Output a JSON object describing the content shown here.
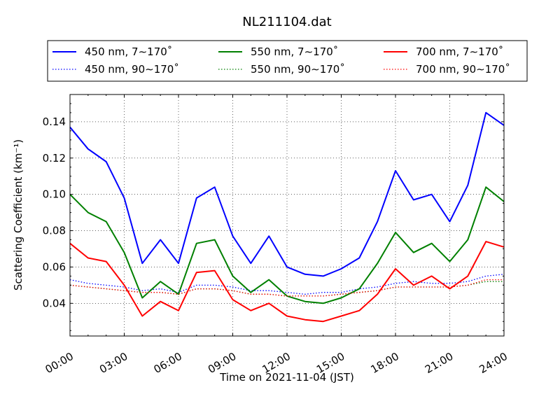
{
  "chart_data": {
    "type": "line",
    "title": "NL211104.dat",
    "xlabel": "Time on 2021-11-04 (JST)",
    "ylabel": "Scattering Coefficient (km⁻¹)",
    "x_unit": "time of day (JST)",
    "xlim": [
      "00:00",
      "24:00"
    ],
    "ylim": [
      0.022,
      0.155
    ],
    "x_tick_labels": [
      "00:00",
      "03:00",
      "06:00",
      "09:00",
      "12:00",
      "15:00",
      "18:00",
      "21:00",
      "24:00"
    ],
    "y_tick_values": [
      0.04,
      0.06,
      0.08,
      0.1,
      0.12,
      0.14
    ],
    "y_tick_labels": [
      "0.04",
      "0.06",
      "0.08",
      "0.10",
      "0.12",
      "0.14"
    ],
    "grid": true,
    "legend_position": "top",
    "x": [
      "00:00",
      "01:00",
      "02:00",
      "03:00",
      "04:00",
      "05:00",
      "06:00",
      "07:00",
      "08:00",
      "09:00",
      "10:00",
      "11:00",
      "12:00",
      "13:00",
      "14:00",
      "15:00",
      "16:00",
      "17:00",
      "18:00",
      "19:00",
      "20:00",
      "21:00",
      "22:00",
      "23:00",
      "24:00"
    ],
    "series": [
      {
        "name": "450 nm, 7∼170˚",
        "color": "#0000ff",
        "style": "solid",
        "values": [
          0.137,
          0.125,
          0.118,
          0.098,
          0.062,
          0.075,
          0.062,
          0.098,
          0.104,
          0.077,
          0.062,
          0.077,
          0.06,
          0.056,
          0.055,
          0.059,
          0.065,
          0.085,
          0.113,
          0.097,
          0.1,
          0.085,
          0.105,
          0.145,
          0.138
        ]
      },
      {
        "name": "450 nm, 90∼170˚",
        "color": "#0000ff",
        "style": "dotted",
        "values": [
          0.053,
          0.051,
          0.05,
          0.049,
          0.047,
          0.048,
          0.046,
          0.05,
          0.05,
          0.049,
          0.047,
          0.047,
          0.046,
          0.045,
          0.046,
          0.046,
          0.048,
          0.049,
          0.051,
          0.052,
          0.051,
          0.051,
          0.052,
          0.055,
          0.056
        ]
      },
      {
        "name": "550 nm, 7∼170˚",
        "color": "#008000",
        "style": "solid",
        "values": [
          0.1,
          0.09,
          0.085,
          0.068,
          0.043,
          0.052,
          0.045,
          0.073,
          0.075,
          0.055,
          0.046,
          0.053,
          0.044,
          0.041,
          0.04,
          0.043,
          0.048,
          0.062,
          0.079,
          0.068,
          0.073,
          0.063,
          0.075,
          0.104,
          0.096
        ]
      },
      {
        "name": "550 nm, 90∼170˚",
        "color": "#008000",
        "style": "dotted",
        "values": [
          0.05,
          0.049,
          0.048,
          0.047,
          0.046,
          0.046,
          0.045,
          0.048,
          0.048,
          0.047,
          0.045,
          0.045,
          0.044,
          0.044,
          0.044,
          0.045,
          0.046,
          0.047,
          0.049,
          0.049,
          0.049,
          0.049,
          0.05,
          0.052,
          0.052
        ]
      },
      {
        "name": "700 nm, 7∼170˚",
        "color": "#ff0000",
        "style": "solid",
        "values": [
          0.073,
          0.065,
          0.063,
          0.05,
          0.033,
          0.041,
          0.036,
          0.057,
          0.058,
          0.042,
          0.036,
          0.04,
          0.033,
          0.031,
          0.03,
          0.033,
          0.036,
          0.045,
          0.059,
          0.05,
          0.055,
          0.048,
          0.055,
          0.074,
          0.071
        ]
      },
      {
        "name": "700 nm, 90∼170˚",
        "color": "#ff0000",
        "style": "dotted",
        "values": [
          0.05,
          0.049,
          0.048,
          0.047,
          0.046,
          0.046,
          0.045,
          0.048,
          0.048,
          0.047,
          0.045,
          0.045,
          0.044,
          0.044,
          0.044,
          0.045,
          0.046,
          0.047,
          0.049,
          0.049,
          0.049,
          0.049,
          0.05,
          0.053,
          0.053
        ]
      }
    ]
  }
}
